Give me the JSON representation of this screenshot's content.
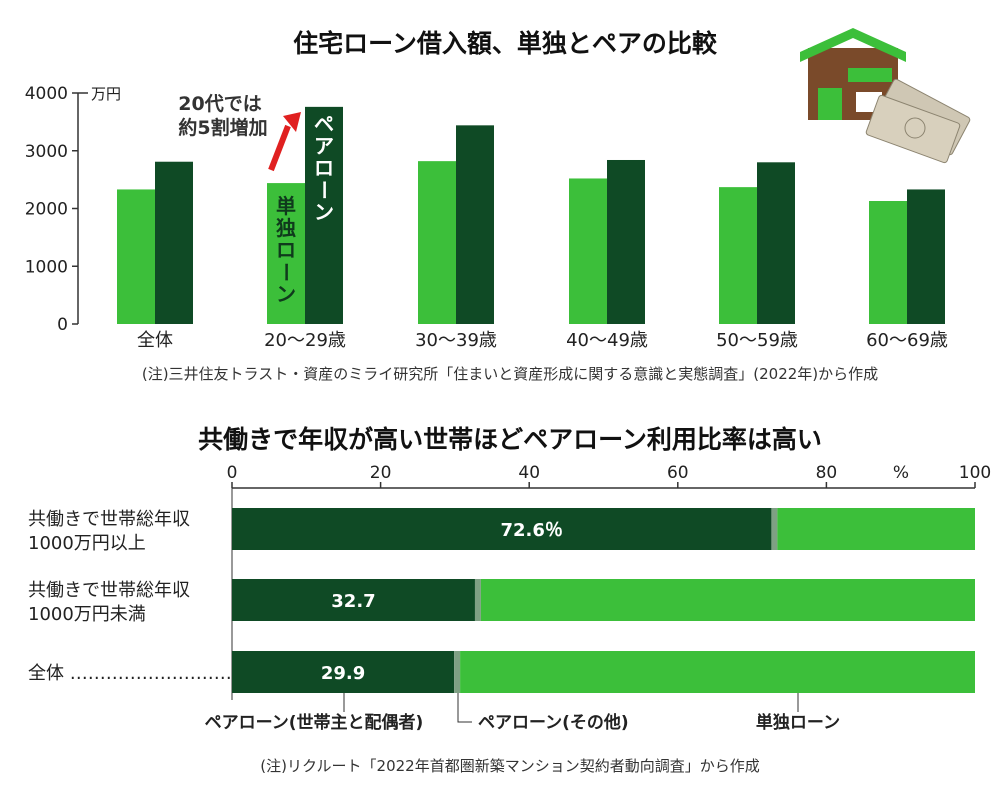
{
  "colors": {
    "single": "#3cbf3a",
    "pair": "#0f4a25",
    "pair_other": "#7fa084",
    "house_wall": "#7a4a2a",
    "house_roof": "#3cbf3a",
    "money": "#cfc7b4"
  },
  "chart_data": [
    {
      "type": "bar",
      "title": "住宅ローン借入額、単独とペアの比較",
      "categories": [
        "全体",
        "20～29歳",
        "30～39歳",
        "40～49歳",
        "50～59歳",
        "60～69歳"
      ],
      "series": [
        {
          "name": "単独ローン",
          "values": [
            2330,
            2440,
            2820,
            2520,
            2370,
            2130
          ]
        },
        {
          "name": "ペアローン",
          "values": [
            2810,
            3760,
            3440,
            2840,
            2800,
            2330
          ]
        }
      ],
      "yticks": [
        "4000",
        "3000",
        "2000",
        "1000",
        "0"
      ],
      "ylabel": "万円",
      "ylim": [
        0,
        4000
      ],
      "annotation": [
        "20代では",
        "約5割増加"
      ],
      "note": "(注)三井住友トラスト・資産のミライ研究所「住まいと資産形成に関する意識と実態調査」(2022年)から作成"
    },
    {
      "type": "bar",
      "orientation": "horizontal-stacked",
      "title": "共働きで年収が高い世帯ほどペアローン利用比率は高い",
      "xticks": [
        "0",
        "20",
        "40",
        "60",
        "80",
        "100"
      ],
      "xunit": "%",
      "xlim": [
        0,
        100
      ],
      "rows": [
        {
          "label": [
            "共働きで世帯総年収",
            "1000万円以上"
          ],
          "pair_main": 72.6,
          "pair_main_label": "72.6％",
          "pair_other": 0.8
        },
        {
          "label": [
            "共働きで世帯総年収",
            "1000万円未満"
          ],
          "pair_main": 32.7,
          "pair_main_label": "32.7",
          "pair_other": 0.8
        },
        {
          "label": [
            "全体 ………………………"
          ],
          "pair_main": 29.9,
          "pair_main_label": "29.9",
          "pair_other": 0.8
        }
      ],
      "legend": [
        "ペアローン(世帯主と配偶者)",
        "ペアローン(その他)",
        "単独ローン"
      ],
      "note": "(注)リクルート「2022年首都圏新築マンション契約者動向調査」から作成"
    }
  ]
}
